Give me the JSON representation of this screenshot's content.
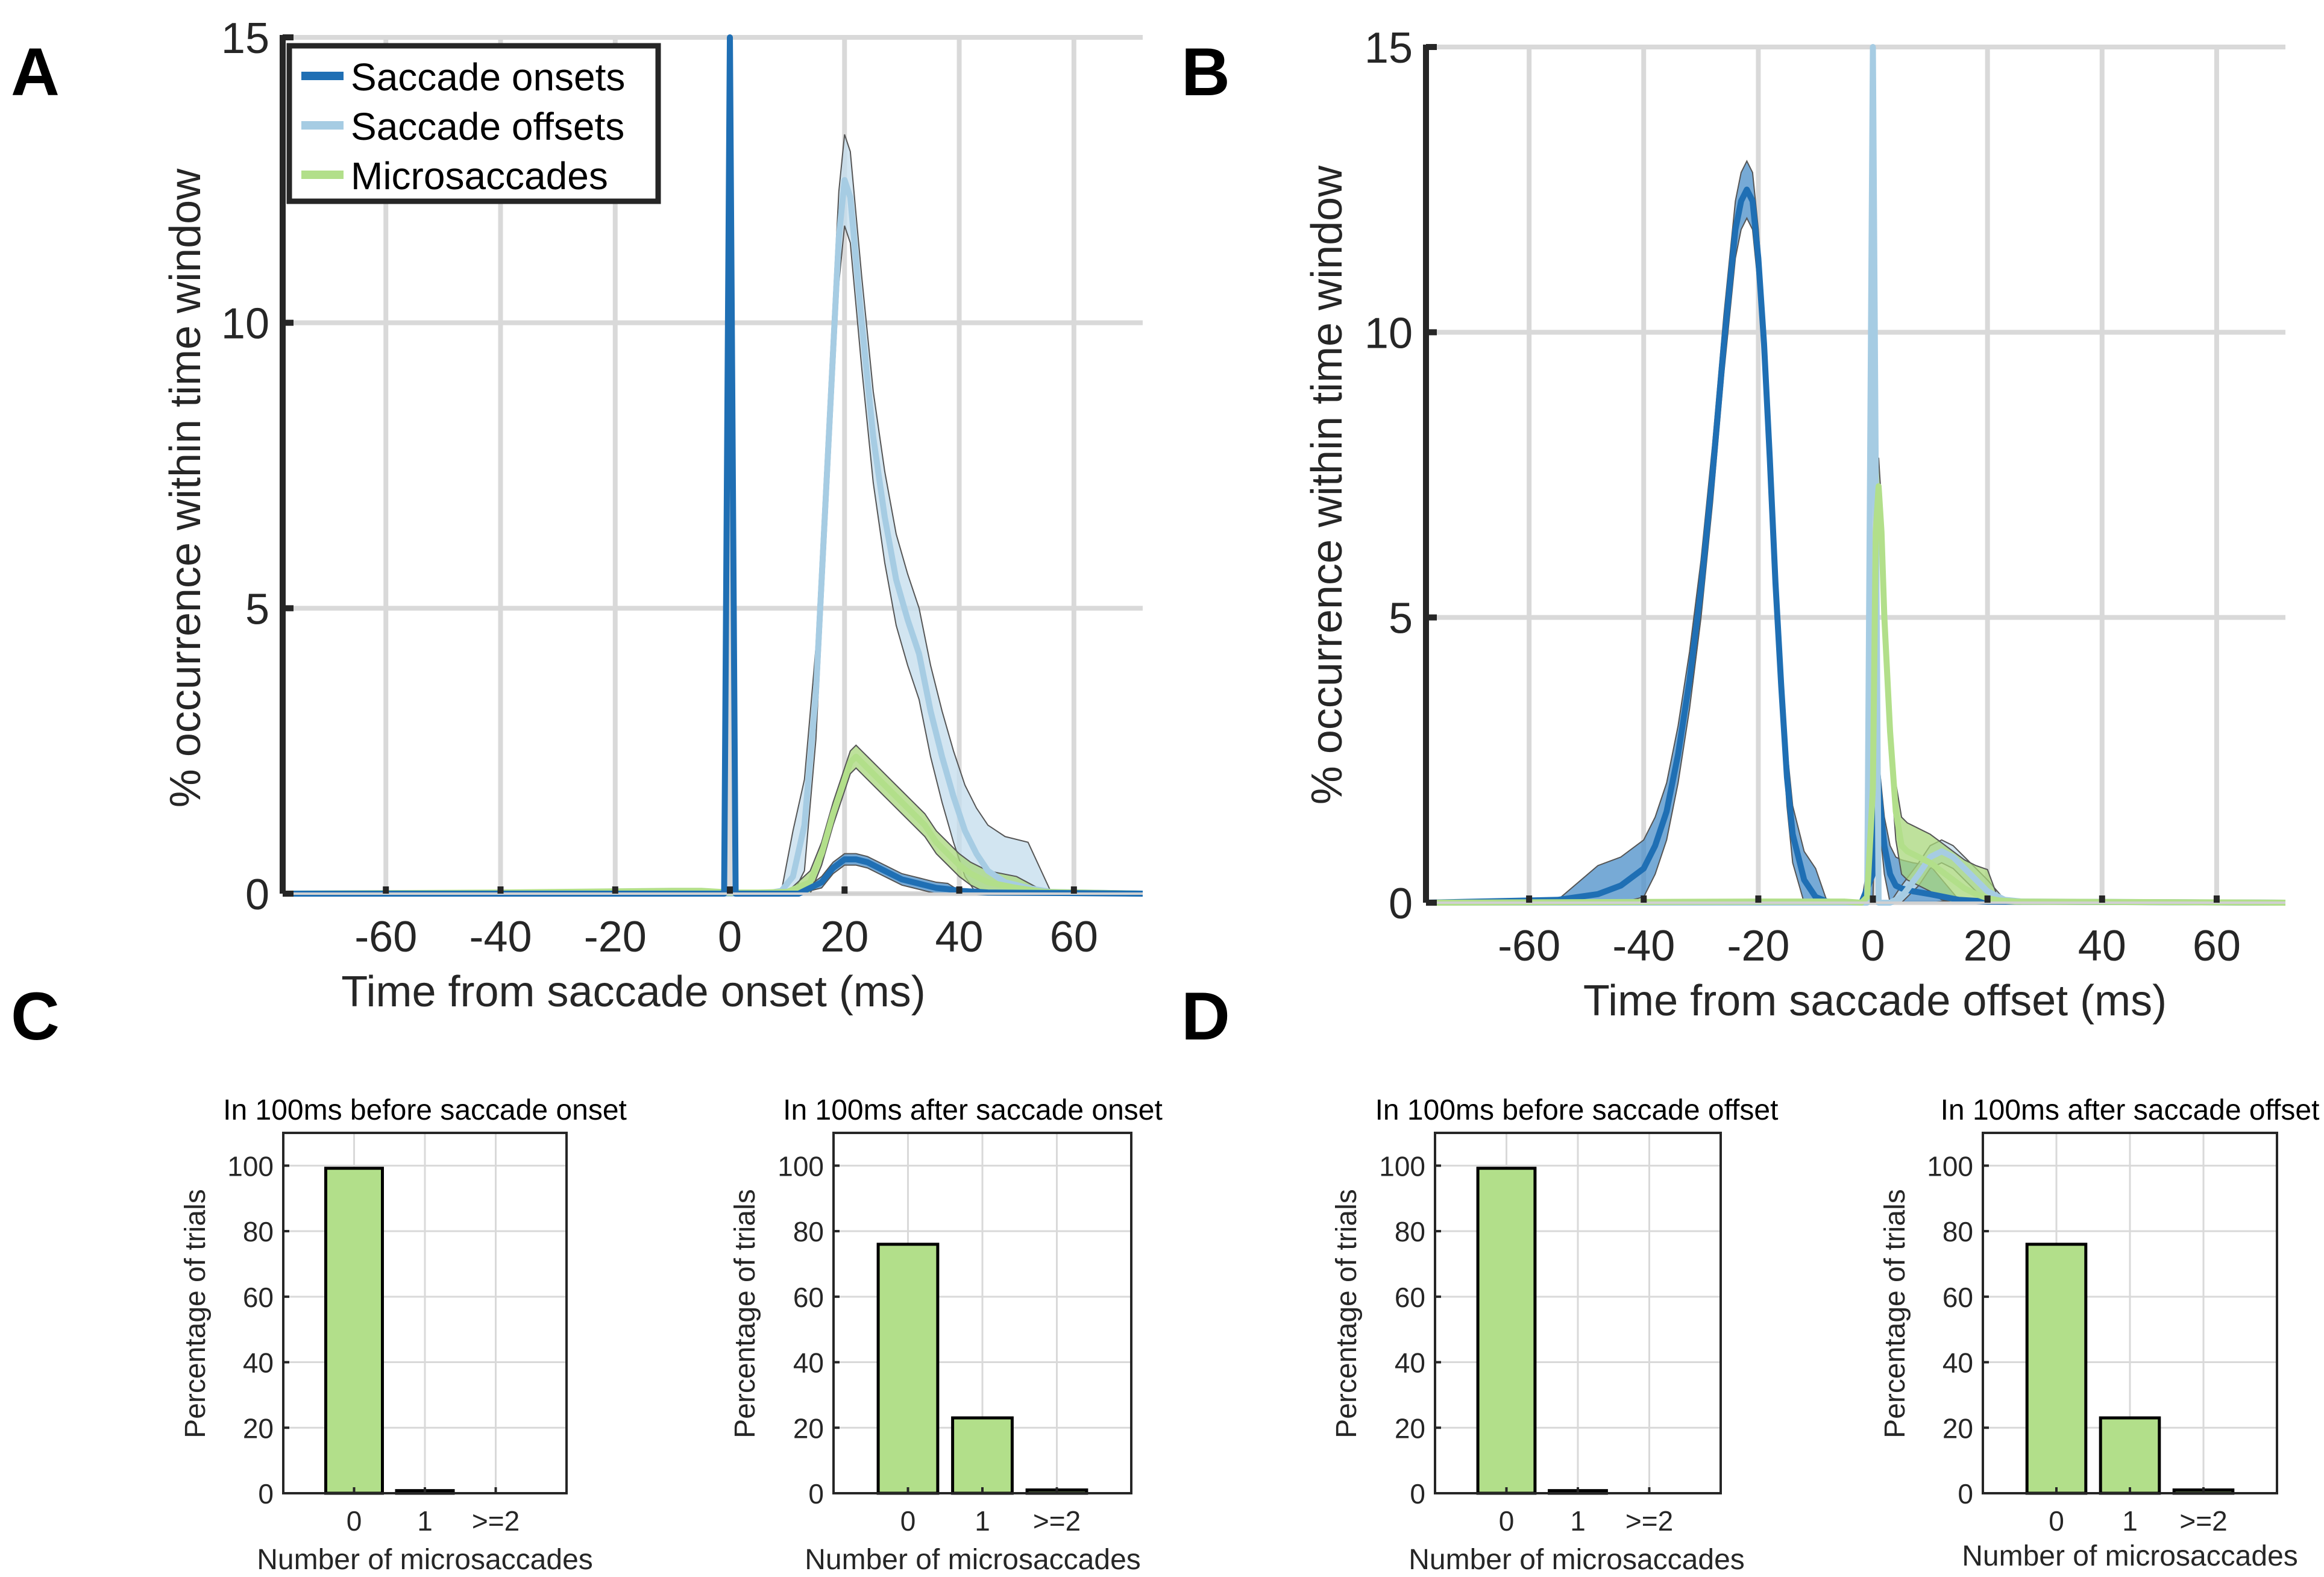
{
  "panels": {
    "A": "A",
    "B": "B",
    "C": "C",
    "D": "D"
  },
  "colors": {
    "onsets": "#1f6fb4",
    "onsets_band": "#4a8ec8",
    "offsets": "#a6cce3",
    "offsets_band": "#c3dcec",
    "micro": "#b2df8a",
    "micro_band": "#a8d77b",
    "bar_fill": "#b2df8a",
    "grid": "#d9d9d9",
    "axis": "#262626"
  },
  "chart_data": [
    {
      "panel": "A",
      "type": "line",
      "xlabel": "Time from saccade onset (ms)",
      "ylabel": "% occurrence within time window",
      "xlim": [
        -78,
        72
      ],
      "ylim": [
        0,
        15
      ],
      "xticks": [
        -60,
        -40,
        -20,
        0,
        20,
        40,
        60
      ],
      "yticks": [
        0,
        5,
        10,
        15
      ],
      "grid": true,
      "legend_position": "top-left",
      "legend": [
        "Saccade onsets",
        "Saccade offsets",
        "Microsaccades"
      ],
      "series": [
        {
          "name": "Saccade onsets",
          "key": "onsets",
          "x": [
            -78,
            -1,
            0,
            1,
            12,
            16,
            18,
            20,
            22,
            24,
            26,
            28,
            30,
            32,
            34,
            36,
            38,
            40,
            45,
            72
          ],
          "y": [
            0,
            0,
            15,
            0,
            0,
            0.2,
            0.45,
            0.6,
            0.6,
            0.55,
            0.45,
            0.35,
            0.25,
            0.2,
            0.15,
            0.1,
            0.08,
            0.05,
            0.02,
            0
          ],
          "band": 0.1
        },
        {
          "name": "Saccade offsets",
          "key": "offsets",
          "x": [
            -78,
            6,
            9,
            11,
            13,
            15,
            17,
            19,
            20,
            21,
            23,
            25,
            27,
            29,
            31,
            33,
            35,
            37,
            39,
            41,
            43,
            45,
            48,
            52,
            56,
            72
          ],
          "y": [
            0,
            0,
            0.05,
            0.3,
            1.2,
            3.5,
            7.5,
            11.5,
            12.5,
            12.2,
            10,
            8,
            6.6,
            5.5,
            4.8,
            4.2,
            3.2,
            2.4,
            1.7,
            1.1,
            0.7,
            0.4,
            0.2,
            0.1,
            0.03,
            0
          ],
          "band": 0.8
        },
        {
          "name": "Microsaccades",
          "key": "micro",
          "x": [
            -78,
            -40,
            -20,
            -10,
            -5,
            0,
            5,
            10,
            14,
            16,
            18,
            20,
            21,
            22,
            23,
            24,
            26,
            28,
            30,
            32,
            34,
            36,
            38,
            40,
            42,
            45,
            50,
            55,
            72
          ],
          "y": [
            0,
            0.02,
            0.04,
            0.05,
            0.05,
            0.02,
            0.02,
            0.03,
            0.2,
            0.7,
            1.4,
            2.0,
            2.3,
            2.4,
            2.3,
            2.2,
            2.0,
            1.8,
            1.6,
            1.4,
            1.2,
            0.9,
            0.7,
            0.5,
            0.35,
            0.2,
            0.1,
            0.03,
            0
          ],
          "band": 0.2
        }
      ]
    },
    {
      "panel": "B",
      "type": "line",
      "xlabel": "Time from saccade offset (ms)",
      "ylabel": "% occurrence within time window",
      "xlim": [
        -78,
        72
      ],
      "ylim": [
        0,
        15
      ],
      "xticks": [
        -60,
        -40,
        -20,
        0,
        20,
        40,
        60
      ],
      "yticks": [
        0,
        5,
        10,
        15
      ],
      "grid": true,
      "series": [
        {
          "name": "Saccade onsets",
          "key": "onsets",
          "x": [
            -78,
            -55,
            -48,
            -44,
            -40,
            -38,
            -36,
            -34,
            -32,
            -30,
            -28,
            -26,
            -24,
            -23,
            -22,
            -21,
            -20,
            -19,
            -18,
            -17,
            -16,
            -15,
            -14,
            -12,
            -10,
            -8,
            -5,
            -2,
            0,
            0.5,
            1,
            2,
            3,
            4,
            5,
            7,
            10,
            15,
            20,
            72
          ],
          "y": [
            0,
            0.05,
            0.15,
            0.3,
            0.6,
            1.0,
            1.6,
            2.6,
            3.9,
            5.5,
            7.5,
            9.8,
            11.8,
            12.3,
            12.5,
            12.3,
            11.3,
            9.8,
            7.8,
            5.6,
            3.8,
            2.2,
            1.2,
            0.4,
            0.1,
            0.02,
            0,
            0,
            0.5,
            2.8,
            2.0,
            1.0,
            0.5,
            0.3,
            0.25,
            0.2,
            0.15,
            0.05,
            0.02,
            0
          ],
          "band": 0.5
        },
        {
          "name": "Saccade offsets",
          "key": "offsets",
          "x": [
            -78,
            -1,
            0,
            1,
            3,
            5,
            8,
            10,
            12,
            14,
            16,
            18,
            20,
            23,
            26,
            72
          ],
          "y": [
            0,
            0,
            15,
            0,
            0,
            0.1,
            0.5,
            0.8,
            0.9,
            0.8,
            0.6,
            0.4,
            0.2,
            0.05,
            0.02,
            0
          ],
          "band": 0.2
        },
        {
          "name": "Microsaccades",
          "key": "micro",
          "x": [
            -78,
            -20,
            -5,
            -2,
            -1,
            0,
            0.5,
            1,
            1.5,
            2,
            3,
            4,
            5,
            6,
            7,
            8,
            10,
            12,
            14,
            16,
            18,
            20,
            22,
            25,
            72
          ],
          "y": [
            0,
            0.02,
            0.02,
            0,
            0.1,
            2.0,
            6.5,
            7.3,
            6.5,
            5.0,
            3.0,
            1.6,
            1.0,
            0.9,
            0.85,
            0.8,
            0.7,
            0.55,
            0.4,
            0.25,
            0.15,
            0.08,
            0.04,
            0.02,
            0
          ],
          "band": 0.5
        }
      ]
    },
    {
      "panel": "C-left",
      "type": "bar",
      "title": "In 100ms before saccade onset",
      "xlabel": "Number of microsaccades",
      "ylabel": "Percentage of trials",
      "categories": [
        "0",
        "1",
        ">=2"
      ],
      "values": [
        99.2,
        0.8,
        0
      ],
      "ylim": [
        0,
        110
      ],
      "yticks": [
        0,
        20,
        40,
        60,
        80,
        100
      ],
      "grid": true
    },
    {
      "panel": "C-right",
      "type": "bar",
      "title": "In 100ms after saccade onset",
      "xlabel": "Number of microsaccades",
      "ylabel": "Percentage of trials",
      "categories": [
        "0",
        "1",
        ">=2"
      ],
      "values": [
        76,
        23,
        1
      ],
      "ylim": [
        0,
        110
      ],
      "yticks": [
        0,
        20,
        40,
        60,
        80,
        100
      ],
      "grid": true
    },
    {
      "panel": "D-left",
      "type": "bar",
      "title": "In 100ms before saccade offset",
      "xlabel": "Number of microsaccades",
      "ylabel": "Percentage of trials",
      "categories": [
        "0",
        "1",
        ">=2"
      ],
      "values": [
        99.2,
        0.8,
        0
      ],
      "ylim": [
        0,
        110
      ],
      "yticks": [
        0,
        20,
        40,
        60,
        80,
        100
      ],
      "grid": true
    },
    {
      "panel": "D-right",
      "type": "bar",
      "title": "In 100ms after saccade offset",
      "xlabel": "Number of microsaccades",
      "ylabel": "Percentage of trials",
      "categories": [
        "0",
        "1",
        ">=2"
      ],
      "values": [
        76,
        23,
        1
      ],
      "ylim": [
        0,
        110
      ],
      "yticks": [
        0,
        20,
        40,
        60,
        80,
        100
      ],
      "grid": true
    }
  ]
}
